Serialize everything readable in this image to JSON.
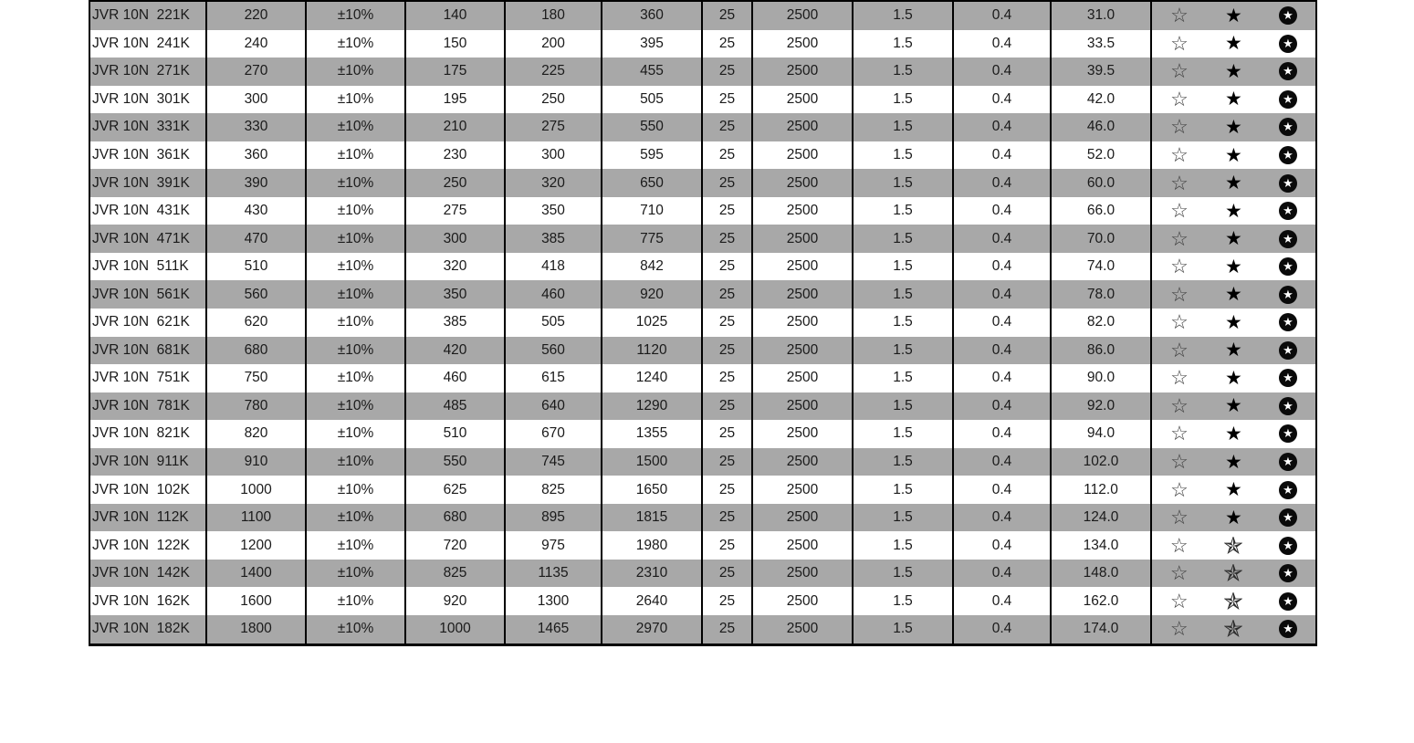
{
  "colors": {
    "page_bg": "#ffffff",
    "row_shade": "#a8a8a8",
    "border": "#000000",
    "text": "#1a1a1a"
  },
  "icons": {
    "outline": {
      "name": "outline-star-icon",
      "glyph": "☆",
      "style": "thin-outline-star"
    },
    "filled": {
      "name": "filled-star-icon",
      "glyph": "★",
      "style": "solid-black-star"
    },
    "pinwheel": {
      "name": "pinwheel-star-icon",
      "glyph": "✯",
      "style": "half-shaded-pinwheel-star"
    },
    "circled": {
      "name": "circled-star-icon",
      "glyph": "★",
      "style": "white-star-on-black-circle"
    }
  },
  "table": {
    "rows": [
      {
        "part": "JVR 10N  221K",
        "values": [
          "220",
          "±10%",
          "140",
          "180",
          "360",
          "25",
          "2500",
          "1.5",
          "0.4",
          "31.0"
        ],
        "stars": [
          "outline",
          "filled",
          "circled"
        ]
      },
      {
        "part": "JVR 10N  241K",
        "values": [
          "240",
          "±10%",
          "150",
          "200",
          "395",
          "25",
          "2500",
          "1.5",
          "0.4",
          "33.5"
        ],
        "stars": [
          "outline",
          "filled",
          "circled"
        ]
      },
      {
        "part": "JVR 10N  271K",
        "values": [
          "270",
          "±10%",
          "175",
          "225",
          "455",
          "25",
          "2500",
          "1.5",
          "0.4",
          "39.5"
        ],
        "stars": [
          "outline",
          "filled",
          "circled"
        ]
      },
      {
        "part": "JVR 10N  301K",
        "values": [
          "300",
          "±10%",
          "195",
          "250",
          "505",
          "25",
          "2500",
          "1.5",
          "0.4",
          "42.0"
        ],
        "stars": [
          "outline",
          "filled",
          "circled"
        ]
      },
      {
        "part": "JVR 10N  331K",
        "values": [
          "330",
          "±10%",
          "210",
          "275",
          "550",
          "25",
          "2500",
          "1.5",
          "0.4",
          "46.0"
        ],
        "stars": [
          "outline",
          "filled",
          "circled"
        ]
      },
      {
        "part": "JVR 10N  361K",
        "values": [
          "360",
          "±10%",
          "230",
          "300",
          "595",
          "25",
          "2500",
          "1.5",
          "0.4",
          "52.0"
        ],
        "stars": [
          "outline",
          "filled",
          "circled"
        ]
      },
      {
        "part": "JVR 10N  391K",
        "values": [
          "390",
          "±10%",
          "250",
          "320",
          "650",
          "25",
          "2500",
          "1.5",
          "0.4",
          "60.0"
        ],
        "stars": [
          "outline",
          "filled",
          "circled"
        ]
      },
      {
        "part": "JVR 10N  431K",
        "values": [
          "430",
          "±10%",
          "275",
          "350",
          "710",
          "25",
          "2500",
          "1.5",
          "0.4",
          "66.0"
        ],
        "stars": [
          "outline",
          "filled",
          "circled"
        ]
      },
      {
        "part": "JVR 10N  471K",
        "values": [
          "470",
          "±10%",
          "300",
          "385",
          "775",
          "25",
          "2500",
          "1.5",
          "0.4",
          "70.0"
        ],
        "stars": [
          "outline",
          "filled",
          "circled"
        ]
      },
      {
        "part": "JVR 10N  511K",
        "values": [
          "510",
          "±10%",
          "320",
          "418",
          "842",
          "25",
          "2500",
          "1.5",
          "0.4",
          "74.0"
        ],
        "stars": [
          "outline",
          "filled",
          "circled"
        ]
      },
      {
        "part": "JVR 10N  561K",
        "values": [
          "560",
          "±10%",
          "350",
          "460",
          "920",
          "25",
          "2500",
          "1.5",
          "0.4",
          "78.0"
        ],
        "stars": [
          "outline",
          "filled",
          "circled"
        ]
      },
      {
        "part": "JVR 10N  621K",
        "values": [
          "620",
          "±10%",
          "385",
          "505",
          "1025",
          "25",
          "2500",
          "1.5",
          "0.4",
          "82.0"
        ],
        "stars": [
          "outline",
          "filled",
          "circled"
        ]
      },
      {
        "part": "JVR 10N  681K",
        "values": [
          "680",
          "±10%",
          "420",
          "560",
          "1120",
          "25",
          "2500",
          "1.5",
          "0.4",
          "86.0"
        ],
        "stars": [
          "outline",
          "filled",
          "circled"
        ]
      },
      {
        "part": "JVR 10N  751K",
        "values": [
          "750",
          "±10%",
          "460",
          "615",
          "1240",
          "25",
          "2500",
          "1.5",
          "0.4",
          "90.0"
        ],
        "stars": [
          "outline",
          "filled",
          "circled"
        ]
      },
      {
        "part": "JVR 10N  781K",
        "values": [
          "780",
          "±10%",
          "485",
          "640",
          "1290",
          "25",
          "2500",
          "1.5",
          "0.4",
          "92.0"
        ],
        "stars": [
          "outline",
          "filled",
          "circled"
        ]
      },
      {
        "part": "JVR 10N  821K",
        "values": [
          "820",
          "±10%",
          "510",
          "670",
          "1355",
          "25",
          "2500",
          "1.5",
          "0.4",
          "94.0"
        ],
        "stars": [
          "outline",
          "filled",
          "circled"
        ]
      },
      {
        "part": "JVR 10N  911K",
        "values": [
          "910",
          "±10%",
          "550",
          "745",
          "1500",
          "25",
          "2500",
          "1.5",
          "0.4",
          "102.0"
        ],
        "stars": [
          "outline",
          "filled",
          "circled"
        ]
      },
      {
        "part": "JVR 10N  102K",
        "values": [
          "1000",
          "±10%",
          "625",
          "825",
          "1650",
          "25",
          "2500",
          "1.5",
          "0.4",
          "112.0"
        ],
        "stars": [
          "outline",
          "filled",
          "circled"
        ]
      },
      {
        "part": "JVR 10N  112K",
        "values": [
          "1100",
          "±10%",
          "680",
          "895",
          "1815",
          "25",
          "2500",
          "1.5",
          "0.4",
          "124.0"
        ],
        "stars": [
          "outline",
          "filled",
          "circled"
        ]
      },
      {
        "part": "JVR 10N  122K",
        "values": [
          "1200",
          "±10%",
          "720",
          "975",
          "1980",
          "25",
          "2500",
          "1.5",
          "0.4",
          "134.0"
        ],
        "stars": [
          "outline",
          "pinwheel",
          "circled"
        ]
      },
      {
        "part": "JVR 10N  142K",
        "values": [
          "1400",
          "±10%",
          "825",
          "1135",
          "2310",
          "25",
          "2500",
          "1.5",
          "0.4",
          "148.0"
        ],
        "stars": [
          "outline",
          "pinwheel",
          "circled"
        ]
      },
      {
        "part": "JVR 10N  162K",
        "values": [
          "1600",
          "±10%",
          "920",
          "1300",
          "2640",
          "25",
          "2500",
          "1.5",
          "0.4",
          "162.0"
        ],
        "stars": [
          "outline",
          "pinwheel",
          "circled"
        ]
      },
      {
        "part": "JVR 10N  182K",
        "values": [
          "1800",
          "±10%",
          "1000",
          "1465",
          "2970",
          "25",
          "2500",
          "1.5",
          "0.4",
          "174.0"
        ],
        "stars": [
          "outline",
          "pinwheel",
          "circled"
        ]
      }
    ]
  }
}
